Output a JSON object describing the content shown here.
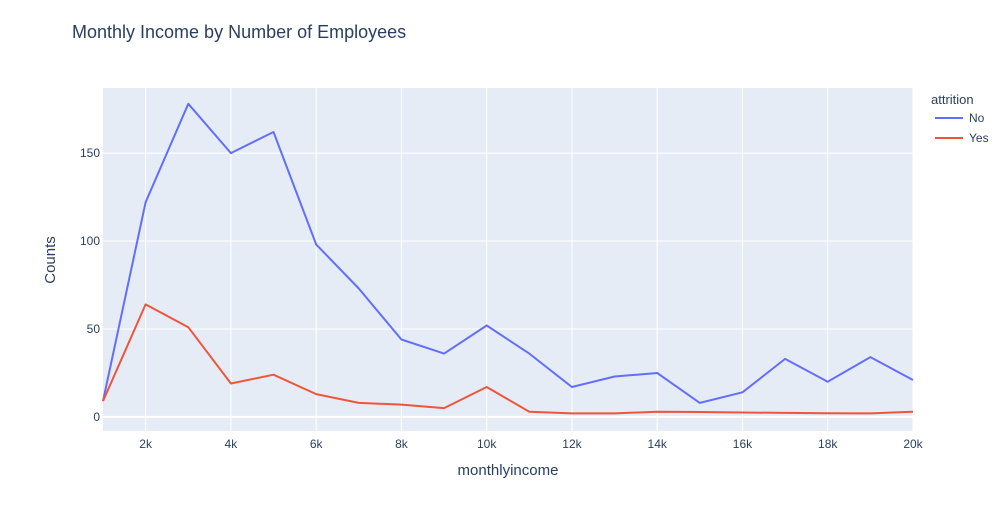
{
  "chart_data": {
    "type": "line",
    "title": "Monthly Income by Number of Employees",
    "xlabel": "monthlyincome",
    "ylabel": "Counts",
    "xlim": [
      1000,
      20000
    ],
    "ylim": [
      -8,
      187
    ],
    "x_ticks": [
      2000,
      4000,
      6000,
      8000,
      10000,
      12000,
      14000,
      16000,
      18000,
      20000
    ],
    "x_tick_labels": [
      "2k",
      "4k",
      "6k",
      "8k",
      "10k",
      "12k",
      "14k",
      "16k",
      "18k",
      "20k"
    ],
    "y_ticks": [
      0,
      50,
      100,
      150
    ],
    "y_tick_labels": [
      "0",
      "50",
      "100",
      "150"
    ],
    "x": [
      1000,
      2000,
      3000,
      4000,
      5000,
      6000,
      7000,
      8000,
      9000,
      10000,
      11000,
      12000,
      13000,
      14000,
      15000,
      16000,
      17000,
      18000,
      19000,
      20000
    ],
    "series": [
      {
        "name": "No",
        "color": "#636efa",
        "values": [
          9,
          122,
          178,
          150,
          162,
          98,
          73,
          44,
          36,
          52,
          36,
          17,
          23,
          25,
          8,
          14,
          33,
          20,
          34,
          21
        ]
      },
      {
        "name": "Yes",
        "color": "#ef553b",
        "values": [
          9,
          64,
          51,
          19,
          24,
          13,
          8,
          7,
          5,
          17,
          3,
          2,
          2,
          3,
          2.8,
          2.5,
          2.3,
          2.1,
          2,
          3
        ]
      }
    ],
    "legend": {
      "title": "attrition",
      "placement": "top-right"
    },
    "grid": true,
    "colors": {
      "plot_bg": "#e5ecf6",
      "grid": "#ffffff",
      "text": "#2a3f5f"
    }
  }
}
